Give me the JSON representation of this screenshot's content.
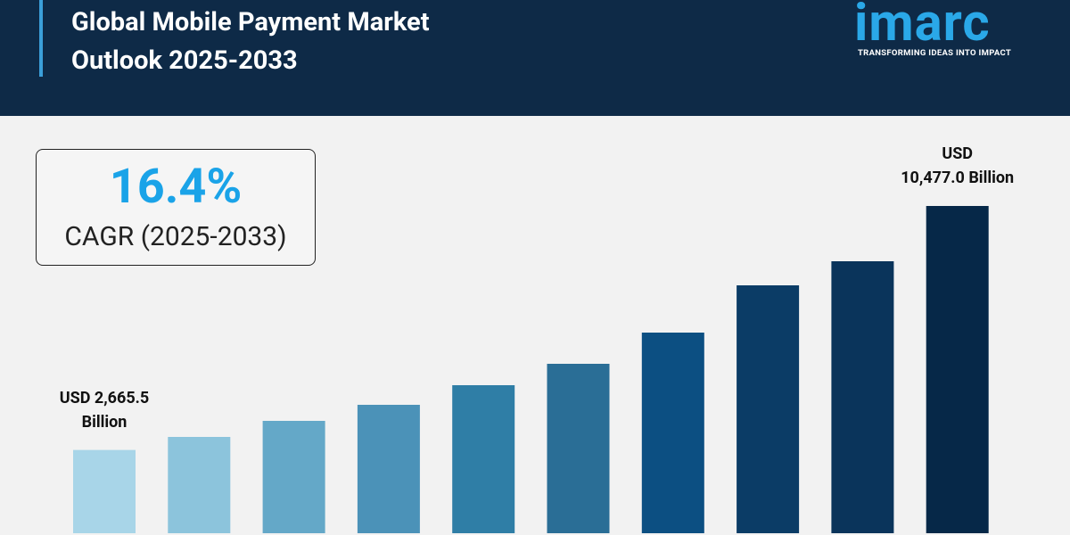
{
  "header": {
    "title": "Global Mobile Payment Market Outlook 2025-2033",
    "logo": "imarc",
    "tagline": "TRANSFORMING IDEAS INTO IMPACT"
  },
  "cagr": {
    "value": "16.4%",
    "label": "CAGR (2025-2033)"
  },
  "chart_data": {
    "type": "bar",
    "categories": [
      null,
      null,
      null,
      null,
      null,
      null,
      null,
      null,
      null,
      null
    ],
    "values": [
      2665.5,
      3083,
      3597,
      4111,
      4739,
      5424,
      6423,
      7936,
      8707,
      10477.0
    ],
    "value_labels": [
      "USD 2,665.5\nBillion",
      null,
      null,
      null,
      null,
      null,
      null,
      null,
      null,
      "USD\n10,477.0 Billion"
    ],
    "colors": [
      "#a8d5e8",
      "#8cc4dc",
      "#64a8c8",
      "#4b92b8",
      "#2f7ea6",
      "#2a6e96",
      "#0c4f82",
      "#0b3c66",
      "#0a345b",
      "#062848"
    ]
  }
}
